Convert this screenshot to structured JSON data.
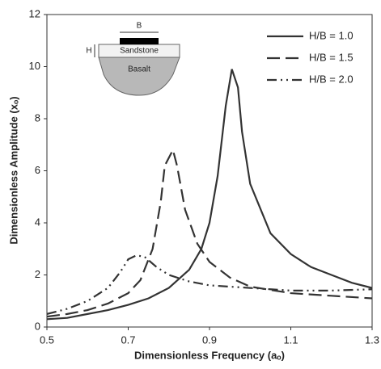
{
  "chart_data": {
    "type": "line",
    "x_label": "Dimensionless Frequency (aₒ)",
    "y_label": "Dimensionless Amplitude (xₒ)",
    "xlim": [
      0.5,
      1.3
    ],
    "xticks": [
      0.5,
      0.7,
      0.9,
      1.1,
      1.3
    ],
    "ylim": [
      0,
      12
    ],
    "yticks": [
      0,
      2,
      4,
      6,
      8,
      10,
      12
    ],
    "legend": "upper right",
    "inset": {
      "width_label": "B",
      "height_label": "H",
      "layer_label": "Sandstone",
      "base_label": "Basalt"
    },
    "series": [
      {
        "name": "H/B = 1.0",
        "color": "#333333",
        "dash": "solid",
        "x": [
          0.5,
          0.55,
          0.6,
          0.65,
          0.7,
          0.75,
          0.8,
          0.85,
          0.88,
          0.9,
          0.92,
          0.94,
          0.955,
          0.97,
          0.98,
          1.0,
          1.05,
          1.1,
          1.15,
          1.2,
          1.25,
          1.3
        ],
        "values": [
          0.3,
          0.35,
          0.5,
          0.65,
          0.85,
          1.1,
          1.5,
          2.2,
          3.0,
          4.0,
          5.8,
          8.5,
          9.9,
          9.2,
          7.5,
          5.5,
          3.6,
          2.8,
          2.3,
          2.0,
          1.7,
          1.5
        ]
      },
      {
        "name": "H/B = 1.5",
        "color": "#333333",
        "dash": "dashed",
        "x": [
          0.5,
          0.55,
          0.6,
          0.65,
          0.7,
          0.73,
          0.76,
          0.78,
          0.79,
          0.81,
          0.82,
          0.84,
          0.87,
          0.9,
          0.95,
          1.0,
          1.1,
          1.2,
          1.3
        ],
        "values": [
          0.4,
          0.5,
          0.65,
          0.9,
          1.3,
          1.8,
          3.0,
          4.8,
          6.2,
          6.8,
          6.2,
          4.5,
          3.2,
          2.5,
          1.9,
          1.55,
          1.3,
          1.2,
          1.1
        ]
      },
      {
        "name": "H/B = 2.0",
        "color": "#333333",
        "dash": "dash-dot-dot",
        "x": [
          0.5,
          0.55,
          0.6,
          0.65,
          0.68,
          0.7,
          0.72,
          0.74,
          0.77,
          0.8,
          0.85,
          0.9,
          0.95,
          1.0,
          1.05,
          1.1,
          1.2,
          1.3
        ],
        "values": [
          0.5,
          0.7,
          1.0,
          1.5,
          2.1,
          2.6,
          2.75,
          2.7,
          2.3,
          2.0,
          1.75,
          1.6,
          1.55,
          1.5,
          1.45,
          1.4,
          1.4,
          1.45
        ]
      }
    ]
  }
}
